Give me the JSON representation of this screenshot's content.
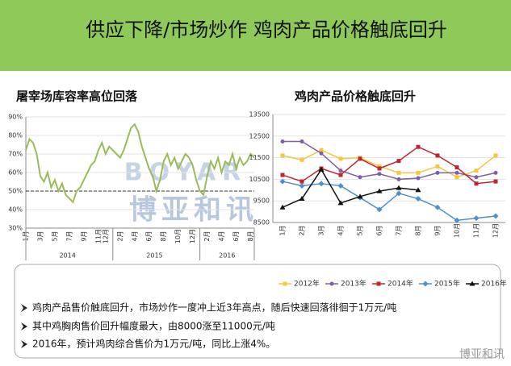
{
  "header": {
    "title": "供应下降/市场炒作  鸡肉产品价格触底回升"
  },
  "watermark": {
    "latin": "BOYAR",
    "name": "博亚和讯"
  },
  "chart_data": [
    {
      "type": "line",
      "title": "屠宰场库容率高位回落",
      "color": "#9bbb59",
      "ylim": [
        30,
        90
      ],
      "yticks": [
        {
          "value": 30,
          "label": "30%"
        },
        {
          "value": 40,
          "label": "40%"
        },
        {
          "value": 50,
          "label": "50%"
        },
        {
          "value": 60,
          "label": "60%"
        },
        {
          "value": 70,
          "label": "70%"
        },
        {
          "value": 80,
          "label": "80%"
        },
        {
          "value": 90,
          "label": "90%"
        }
      ],
      "ref_line": 50,
      "years": [
        "2014",
        "2015",
        "2016"
      ],
      "categories": [
        "1月",
        null,
        null,
        null,
        "3月",
        null,
        null,
        null,
        "5月",
        null,
        null,
        null,
        "7月",
        null,
        null,
        null,
        "9月",
        null,
        null,
        null,
        "11月",
        null,
        "12月",
        null,
        null,
        null,
        "2月",
        null,
        null,
        null,
        "4月",
        null,
        null,
        null,
        "6月",
        null,
        null,
        null,
        "8月",
        null,
        null,
        null,
        "10月",
        null,
        null,
        null,
        "12月",
        null,
        null,
        null,
        "2月",
        null,
        null,
        null,
        "4月",
        null,
        null,
        null,
        "6月",
        null,
        null,
        null,
        "8月",
        null
      ],
      "values": [
        72,
        78,
        76,
        70,
        58,
        55,
        60,
        52,
        56,
        50,
        54,
        48,
        46,
        44,
        50,
        52,
        56,
        60,
        64,
        66,
        72,
        76,
        70,
        74,
        72,
        70,
        68,
        72,
        78,
        84,
        86,
        82,
        74,
        68,
        62,
        58,
        50,
        56,
        66,
        70,
        64,
        68,
        62,
        66,
        70,
        68,
        64,
        56,
        50,
        48,
        58,
        66,
        62,
        68,
        60,
        66,
        64,
        70,
        62,
        68,
        64,
        66,
        70,
        68
      ]
    },
    {
      "type": "line",
      "title": "鸡肉产品价格触底回升",
      "markers": true,
      "ylim": [
        8500,
        13500
      ],
      "yticks": [
        8500,
        9500,
        10500,
        11500,
        12500,
        13500
      ],
      "categories": [
        "1月",
        "2月",
        "3月",
        "4月",
        "5月",
        "6月",
        "7月",
        "8月",
        "9月",
        "10月",
        "11月",
        "12月"
      ],
      "series": [
        {
          "name": "2012年",
          "color": "#f2c744",
          "marker": "square",
          "values": [
            11600,
            11400,
            11850,
            11450,
            11500,
            11100,
            10800,
            10800,
            11100,
            10600,
            10900,
            11600
          ]
        },
        {
          "name": "2013年",
          "color": "#7e5ea8",
          "marker": "circle",
          "values": [
            12250,
            12250,
            11700,
            10900,
            10600,
            10750,
            10500,
            10550,
            10800,
            10800,
            10600,
            10800
          ]
        },
        {
          "name": "2014年",
          "color": "#c0272d",
          "marker": "square",
          "values": [
            10700,
            10400,
            11000,
            10700,
            11450,
            11000,
            11350,
            12000,
            11600,
            11050,
            10300,
            10400
          ]
        },
        {
          "name": "2015年",
          "color": "#4f8fce",
          "marker": "diamond",
          "values": [
            10400,
            10200,
            10300,
            10200,
            9650,
            9100,
            9850,
            9600,
            9200,
            8600,
            8700,
            8800
          ]
        },
        {
          "name": "2016年",
          "color": "#111111",
          "marker": "triangle",
          "values": [
            9200,
            9600,
            10950,
            9400,
            9700,
            9950,
            10100,
            10000,
            null,
            null,
            null,
            null
          ]
        }
      ]
    }
  ],
  "bullets": [
    "鸡肉产品售价触底回升，市场炒作一度冲上近3年高点，随后快速回落徘徊于1万元/吨",
    "其中鸡胸肉售价回升幅度最大，由8000涨至11000元/吨",
    "2016年，预计鸡肉综合售价为1万元/吨，同比上涨4%。"
  ],
  "footer": "博亚和讯"
}
